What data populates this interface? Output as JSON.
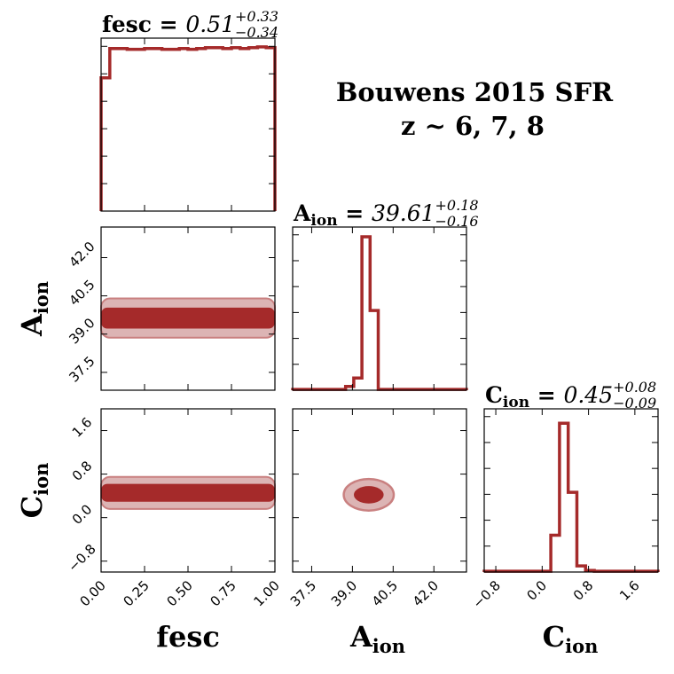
{
  "figure": {
    "title_line1": "Bouwens 2015 SFR",
    "title_line2": "z ~ 6, 7, 8"
  },
  "colors": {
    "line": "#a52a2a",
    "fill_inner": "#a52a2a",
    "fill_outer": "#dcb4b4",
    "fill_outer_edge": "#c98080",
    "axis": "#000000"
  },
  "chart_data": [
    {
      "type": "histogram",
      "panel": "fesc-marginal",
      "param": "fesc",
      "title_name": "fesc",
      "title_value": "0.51",
      "title_plus": "+0.33",
      "title_minus": "−0.34",
      "xlim": [
        0.0,
        1.0
      ],
      "bin_edges": [
        0.0,
        0.05,
        0.1,
        0.15,
        0.2,
        0.25,
        0.3,
        0.35,
        0.4,
        0.45,
        0.5,
        0.55,
        0.6,
        0.65,
        0.7,
        0.75,
        0.8,
        0.85,
        0.9,
        0.95,
        1.0
      ],
      "counts": [
        0.82,
        1.0,
        1.0,
        0.995,
        0.995,
        1.0,
        1.0,
        0.995,
        0.995,
        1.0,
        0.995,
        1.0,
        1.005,
        1.005,
        1.0,
        1.005,
        1.0,
        1.005,
        1.01,
        1.005
      ]
    },
    {
      "type": "histogram",
      "panel": "aion-marginal",
      "param": "A_ion",
      "title_name": "A",
      "title_sub": "ion",
      "title_value": "39.61",
      "title_plus": "+0.18",
      "title_minus": "−0.16",
      "xlim": [
        36.8,
        43.2
      ],
      "bin_edges": [
        36.8,
        37.45,
        38.1,
        38.75,
        39.05,
        39.35,
        39.65,
        39.95,
        40.25,
        40.75,
        41.4,
        42.05,
        42.7,
        43.2
      ],
      "counts": [
        0.005,
        0.005,
        0.005,
        0.025,
        0.08,
        1.0,
        0.52,
        0.005,
        0.005,
        0.005,
        0.005,
        0.005,
        0.005
      ]
    },
    {
      "type": "histogram",
      "panel": "cion-marginal",
      "param": "C_ion",
      "title_name": "C",
      "title_sub": "ion",
      "title_value": "0.45",
      "title_plus": "+0.08",
      "title_minus": "−0.09",
      "xlim": [
        -1.0,
        2.0
      ],
      "bin_edges": [
        -1.0,
        -0.5,
        0.0,
        0.15,
        0.3,
        0.45,
        0.6,
        0.75,
        0.9,
        1.2,
        1.5,
        2.0
      ],
      "counts": [
        0.005,
        0.005,
        0.005,
        0.24,
        0.97,
        0.52,
        0.04,
        0.01,
        0.005,
        0.005,
        0.005
      ]
    },
    {
      "type": "contour",
      "panel": "fesc-vs-aion",
      "x": "fesc",
      "y": "A_ion",
      "xlim": [
        0.0,
        1.0
      ],
      "ylim": [
        36.8,
        43.2
      ],
      "contours": [
        {
          "level": "outer",
          "x": [
            0.0,
            1.0
          ],
          "y": [
            38.86,
            40.4
          ]
        },
        {
          "level": "inner",
          "x": [
            0.0,
            1.0
          ],
          "y": [
            39.22,
            40.04
          ]
        }
      ]
    },
    {
      "type": "contour",
      "panel": "fesc-vs-cion",
      "x": "fesc",
      "y": "C_ion",
      "xlim": [
        0.0,
        1.0
      ],
      "ylim": [
        -1.0,
        2.0
      ],
      "contours": [
        {
          "level": "outer",
          "x": [
            0.0,
            1.0
          ],
          "y": [
            0.16,
            0.75
          ]
        },
        {
          "level": "inner",
          "x": [
            0.0,
            1.0
          ],
          "y": [
            0.29,
            0.62
          ]
        }
      ]
    },
    {
      "type": "contour",
      "panel": "aion-vs-cion",
      "x": "A_ion",
      "y": "C_ion",
      "xlim": [
        36.8,
        43.2
      ],
      "ylim": [
        -1.0,
        2.0
      ],
      "contours": [
        {
          "level": "outer",
          "cx": 39.6,
          "cy": 0.42,
          "rx": 0.92,
          "ry": 0.29
        },
        {
          "level": "inner",
          "cx": 39.6,
          "cy": 0.42,
          "rx": 0.55,
          "ry": 0.16
        }
      ]
    }
  ],
  "axes": {
    "fesc": {
      "label": "fesc",
      "ticks": [
        0.0,
        0.25,
        0.5,
        0.75,
        1.0
      ],
      "tick_labels": [
        "0.00",
        "0.25",
        "0.50",
        "0.75",
        "1.00"
      ]
    },
    "A_ion": {
      "label": "A",
      "sub": "ion",
      "ticks": [
        37.5,
        39.0,
        40.5,
        42.0
      ],
      "tick_labels": [
        "37.5",
        "39.0",
        "40.5",
        "42.0"
      ]
    },
    "C_ion": {
      "label": "C",
      "sub": "ion",
      "ticks": [
        -0.8,
        0.0,
        0.8,
        1.6
      ],
      "tick_labels": [
        "−0.8",
        "0.0",
        "0.8",
        "1.6"
      ]
    }
  }
}
